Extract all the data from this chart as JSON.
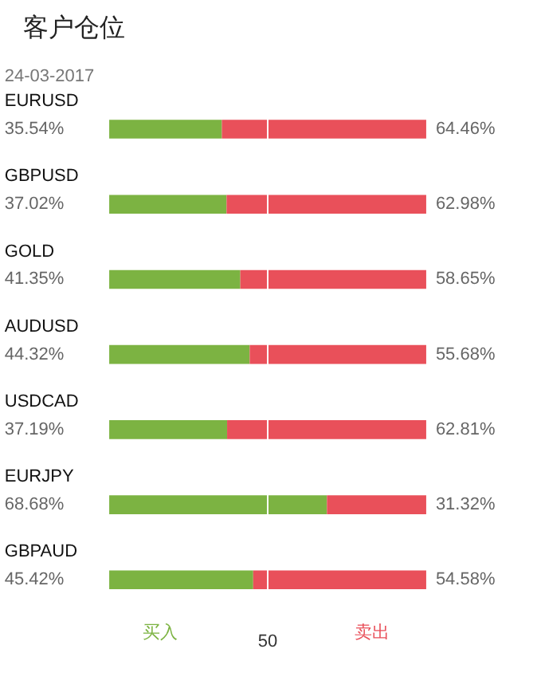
{
  "chart_data": {
    "type": "bar",
    "orientation": "horizontal",
    "stacked": true,
    "title": "客户仓位",
    "subtitle": "24-03-2017",
    "categories": [
      "EURUSD",
      "GBPUSD",
      "GOLD",
      "AUDUSD",
      "USDCAD",
      "EURJPY",
      "GBPAUD"
    ],
    "series": [
      {
        "name": "买入",
        "color": "#7cb342",
        "values": [
          35.54,
          37.02,
          41.35,
          44.32,
          37.19,
          68.68,
          45.42
        ],
        "value_labels": [
          "35.54%",
          "37.02%",
          "41.35%",
          "44.32%",
          "37.19%",
          "68.68%",
          "45.42%"
        ]
      },
      {
        "name": "卖出",
        "color": "#e9505a",
        "values": [
          64.46,
          62.98,
          58.65,
          55.68,
          62.81,
          31.32,
          54.58
        ],
        "value_labels": [
          "64.46%",
          "62.98%",
          "58.65%",
          "55.68%",
          "62.81%",
          "31.32%",
          "54.58%"
        ]
      }
    ],
    "xlim": [
      0,
      100
    ],
    "xticks": [
      50
    ],
    "ref_lines": [
      {
        "axis": "x",
        "value": 50,
        "color": "#ffffff"
      }
    ],
    "legend": "bottom",
    "grid": false
  }
}
